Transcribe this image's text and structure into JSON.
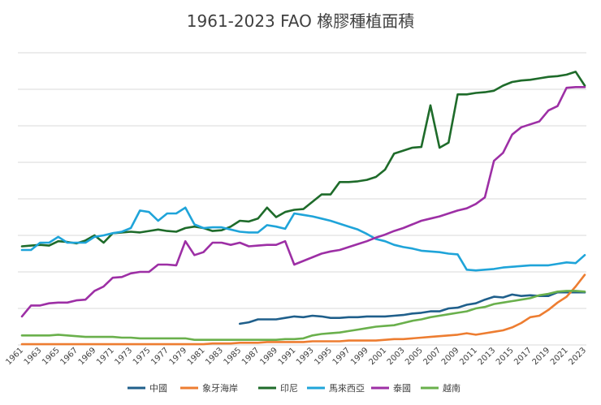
{
  "chart_data": {
    "type": "line",
    "title": "1961-2023 FAO 橡膠種植面積",
    "xlabel": "",
    "ylabel": "",
    "x_start": 1961,
    "x_end": 2023,
    "x_tick_labels": [
      "1961",
      "1963",
      "1965",
      "1967",
      "1969",
      "1971",
      "1973",
      "1975",
      "1977",
      "1979",
      "1981",
      "1983",
      "1985",
      "1987",
      "1989",
      "1991",
      "1993",
      "1995",
      "1997",
      "1999",
      "2001",
      "2003",
      "2005",
      "2007",
      "2009",
      "2011",
      "2013",
      "2015",
      "2017",
      "2019",
      "2021",
      "2023"
    ],
    "ylim": [
      0,
      4.0
    ],
    "y_gridlines": [
      0,
      0.5,
      1.0,
      1.5,
      2.0,
      2.5,
      3.0,
      3.5,
      4.0
    ],
    "y_tick_labels_shown": false,
    "grid": true,
    "legend_position": "bottom",
    "series": [
      {
        "name": "中國",
        "color": "#1f5f8b",
        "start_year": 1985,
        "values": [
          0.29,
          0.31,
          0.35,
          0.35,
          0.35,
          0.37,
          0.39,
          0.38,
          0.4,
          0.39,
          0.37,
          0.37,
          0.38,
          0.38,
          0.39,
          0.39,
          0.39,
          0.4,
          0.41,
          0.43,
          0.44,
          0.46,
          0.46,
          0.5,
          0.51,
          0.55,
          0.57,
          0.62,
          0.66,
          0.65,
          0.69,
          0.67,
          0.68,
          0.67,
          0.67,
          0.72,
          0.72,
          0.72,
          0.72
        ]
      },
      {
        "name": "象牙海岸",
        "color": "#ed7d31",
        "start_year": 1961,
        "values": [
          0.01,
          0.01,
          0.01,
          0.01,
          0.01,
          0.01,
          0.01,
          0.01,
          0.01,
          0.01,
          0.01,
          0.01,
          0.01,
          0.01,
          0.01,
          0.01,
          0.01,
          0.01,
          0.01,
          0.01,
          0.01,
          0.02,
          0.02,
          0.02,
          0.03,
          0.03,
          0.03,
          0.04,
          0.04,
          0.04,
          0.04,
          0.04,
          0.05,
          0.05,
          0.05,
          0.05,
          0.06,
          0.06,
          0.06,
          0.06,
          0.07,
          0.08,
          0.08,
          0.09,
          0.1,
          0.11,
          0.12,
          0.13,
          0.14,
          0.16,
          0.14,
          0.16,
          0.18,
          0.2,
          0.24,
          0.3,
          0.38,
          0.4,
          0.48,
          0.58,
          0.66,
          0.8,
          0.96
        ]
      },
      {
        "name": "印尼",
        "color": "#1e6b2a",
        "start_year": 1961,
        "values": [
          1.35,
          1.36,
          1.37,
          1.36,
          1.42,
          1.41,
          1.39,
          1.43,
          1.5,
          1.4,
          1.53,
          1.54,
          1.55,
          1.54,
          1.56,
          1.58,
          1.56,
          1.55,
          1.6,
          1.62,
          1.6,
          1.56,
          1.57,
          1.62,
          1.7,
          1.69,
          1.73,
          1.88,
          1.75,
          1.82,
          1.85,
          1.86,
          1.96,
          2.06,
          2.06,
          2.23,
          2.23,
          2.24,
          2.26,
          2.3,
          2.4,
          2.62,
          2.66,
          2.7,
          2.71,
          3.28,
          2.7,
          2.77,
          3.43,
          3.43,
          3.45,
          3.46,
          3.48,
          3.55,
          3.6,
          3.62,
          3.63,
          3.65,
          3.67,
          3.68,
          3.7,
          3.74,
          3.55
        ]
      },
      {
        "name": "馬來西亞",
        "color": "#1fa4d9",
        "start_year": 1961,
        "values": [
          1.3,
          1.3,
          1.4,
          1.4,
          1.48,
          1.4,
          1.4,
          1.4,
          1.48,
          1.5,
          1.53,
          1.55,
          1.6,
          1.84,
          1.82,
          1.7,
          1.8,
          1.8,
          1.88,
          1.65,
          1.6,
          1.61,
          1.61,
          1.58,
          1.55,
          1.54,
          1.54,
          1.64,
          1.62,
          1.59,
          1.8,
          1.78,
          1.76,
          1.73,
          1.7,
          1.66,
          1.62,
          1.58,
          1.52,
          1.45,
          1.42,
          1.37,
          1.34,
          1.32,
          1.29,
          1.28,
          1.27,
          1.25,
          1.24,
          1.03,
          1.02,
          1.03,
          1.04,
          1.06,
          1.07,
          1.08,
          1.09,
          1.09,
          1.09,
          1.11,
          1.13,
          1.12,
          1.23
        ]
      },
      {
        "name": "泰國",
        "color": "#9d2fa5",
        "start_year": 1961,
        "values": [
          0.39,
          0.54,
          0.54,
          0.57,
          0.58,
          0.58,
          0.61,
          0.62,
          0.74,
          0.8,
          0.92,
          0.93,
          0.98,
          1.0,
          1.0,
          1.1,
          1.1,
          1.09,
          1.42,
          1.23,
          1.27,
          1.4,
          1.4,
          1.37,
          1.4,
          1.35,
          1.36,
          1.37,
          1.37,
          1.42,
          1.1,
          1.15,
          1.2,
          1.25,
          1.28,
          1.3,
          1.34,
          1.38,
          1.42,
          1.47,
          1.51,
          1.56,
          1.6,
          1.65,
          1.7,
          1.73,
          1.76,
          1.8,
          1.84,
          1.87,
          1.93,
          2.02,
          2.52,
          2.63,
          2.88,
          2.98,
          3.02,
          3.06,
          3.21,
          3.27,
          3.52,
          3.53,
          3.53
        ]
      },
      {
        "name": "越南",
        "color": "#6ab04c",
        "start_year": 1961,
        "values": [
          0.13,
          0.13,
          0.13,
          0.13,
          0.14,
          0.13,
          0.12,
          0.11,
          0.11,
          0.11,
          0.11,
          0.1,
          0.1,
          0.09,
          0.09,
          0.09,
          0.09,
          0.09,
          0.09,
          0.07,
          0.07,
          0.07,
          0.07,
          0.07,
          0.07,
          0.07,
          0.07,
          0.07,
          0.07,
          0.08,
          0.08,
          0.09,
          0.13,
          0.15,
          0.16,
          0.17,
          0.19,
          0.21,
          0.23,
          0.25,
          0.26,
          0.27,
          0.3,
          0.33,
          0.35,
          0.38,
          0.4,
          0.42,
          0.44,
          0.46,
          0.5,
          0.52,
          0.56,
          0.58,
          0.6,
          0.62,
          0.64,
          0.68,
          0.7,
          0.73,
          0.74,
          0.74,
          0.73
        ]
      }
    ]
  }
}
